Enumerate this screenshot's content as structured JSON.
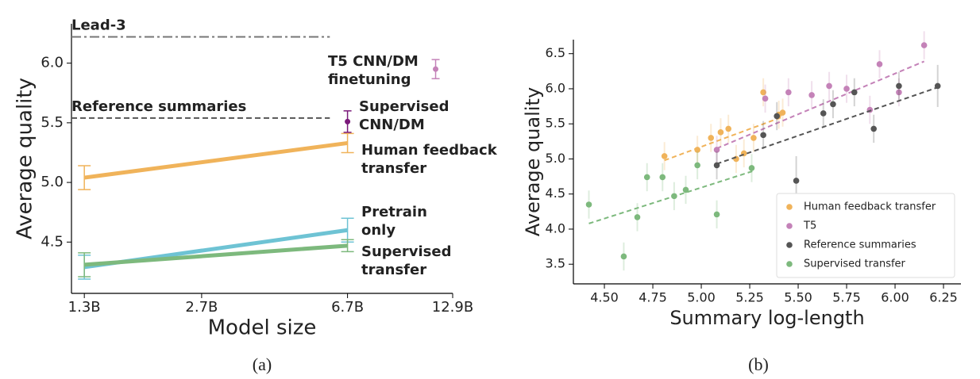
{
  "chart_data": [
    {
      "type": "line",
      "log_x": true,
      "caption": "(a)",
      "xlabel": "Model size",
      "ylabel": "Average quality",
      "xlim": [
        1.2,
        12.9
      ],
      "ylim": [
        4.07,
        6.33
      ],
      "xticks": [
        {
          "value": 1.3,
          "label": "1.3B"
        },
        {
          "value": 2.7,
          "label": "2.7B"
        },
        {
          "value": 6.7,
          "label": "6.7B"
        },
        {
          "value": 12.9,
          "label": "12.9B"
        }
      ],
      "yticks": [
        4.5,
        {
          "value": 5,
          "label": "5.0"
        },
        5.5,
        {
          "value": 6,
          "label": "6.0"
        }
      ],
      "hlines": [
        {
          "label": "Lead-3",
          "y": 6.22,
          "style": "dashdot",
          "color": "#8a8a8a",
          "x_range": [
            1.2,
            6.0
          ]
        },
        {
          "label": "Reference summaries",
          "y": 5.54,
          "style": "dashed",
          "color": "#8a8a8a",
          "x_range": [
            1.2,
            6.0
          ]
        }
      ],
      "series": [
        {
          "name": [
            "Human feedback",
            "transfer"
          ],
          "color": "#f0b35a",
          "marker": "line",
          "x": [
            1.3,
            6.7
          ],
          "values": [
            5.04,
            5.33
          ],
          "errors": [
            0.1,
            0.08
          ]
        },
        {
          "name": [
            "Pretrain",
            "only"
          ],
          "color": "#6ec3d4",
          "marker": "line",
          "x": [
            1.3,
            6.7
          ],
          "values": [
            4.29,
            4.6
          ],
          "errors": [
            0.1,
            0.1
          ]
        },
        {
          "name": [
            "Supervised",
            "transfer"
          ],
          "color": "#7db97d",
          "marker": "line",
          "x": [
            1.3,
            6.7
          ],
          "values": [
            4.31,
            4.47
          ],
          "errors": [
            0.1,
            0.05
          ]
        },
        {
          "name": [
            "Supervised",
            "CNN/DM"
          ],
          "color": "#7a1a7a",
          "marker": "point",
          "x": [
            6.7
          ],
          "values": [
            5.51
          ],
          "errors": [
            0.09
          ]
        },
        {
          "name": [
            "T5 CNN/DM",
            "finetuning"
          ],
          "color": "#c482b8",
          "marker": "point",
          "x": [
            11.6
          ],
          "values": [
            5.95
          ],
          "errors": [
            0.08
          ]
        }
      ]
    },
    {
      "type": "scatter",
      "caption": "(b)",
      "xlabel": "Summary log-length",
      "ylabel": "Average quality",
      "legend": "lower right",
      "xlim": [
        4.34,
        6.34
      ],
      "ylim": [
        3.22,
        6.7
      ],
      "xticks": [
        {
          "value": 4.5,
          "label": "4.50"
        },
        4.75,
        {
          "value": 5,
          "label": "5.00"
        },
        5.25,
        {
          "value": 5.5,
          "label": "5.50"
        },
        5.75,
        {
          "value": 6,
          "label": "6.00"
        },
        6.25
      ],
      "yticks": [
        3.5,
        {
          "value": 4,
          "label": "4.0"
        },
        4.5,
        {
          "value": 5,
          "label": "5.0"
        },
        5.5,
        {
          "value": 6,
          "label": "6.0"
        },
        6.5
      ],
      "series": [
        {
          "name": "Human feedback transfer",
          "color": "#f0b35a",
          "x": [
            4.81,
            4.98,
            5.05,
            5.1,
            5.14,
            5.18,
            5.22,
            5.27,
            5.32,
            5.4,
            5.42
          ],
          "values": [
            5.04,
            5.13,
            5.3,
            5.38,
            5.43,
            5.0,
            5.08,
            5.3,
            5.95,
            5.63,
            5.66
          ],
          "errors": [
            0.2,
            0.2,
            0.2,
            0.2,
            0.2,
            0.2,
            0.2,
            0.2,
            0.2,
            0.2,
            0.2
          ],
          "trend_x": [
            4.81,
            5.42
          ],
          "trend_y": [
            4.98,
            5.6
          ]
        },
        {
          "name": "T5",
          "color": "#c482b8",
          "x": [
            5.08,
            5.33,
            5.45,
            5.57,
            5.66,
            5.75,
            5.87,
            5.92,
            6.02,
            6.15
          ],
          "values": [
            5.13,
            5.86,
            5.95,
            5.91,
            6.04,
            6.0,
            5.7,
            6.35,
            5.95,
            6.62
          ],
          "errors": [
            0.2,
            0.2,
            0.2,
            0.2,
            0.2,
            0.2,
            0.2,
            0.2,
            0.2,
            0.2
          ],
          "trend_x": [
            5.08,
            6.15
          ],
          "trend_y": [
            5.15,
            6.39
          ]
        },
        {
          "name": "Reference summaries",
          "color": "#555555",
          "x": [
            5.08,
            5.32,
            5.39,
            5.49,
            5.63,
            5.68,
            5.79,
            5.89,
            6.02,
            6.22
          ],
          "values": [
            4.91,
            5.34,
            5.61,
            4.69,
            5.65,
            5.78,
            5.95,
            5.43,
            6.04,
            6.04
          ],
          "errors": [
            0.2,
            0.2,
            0.2,
            0.35,
            0.2,
            0.2,
            0.2,
            0.2,
            0.2,
            0.3
          ],
          "trend_x": [
            5.08,
            6.22
          ],
          "trend_y": [
            4.93,
            6.02
          ]
        },
        {
          "name": "Supervised transfer",
          "color": "#7db97d",
          "x": [
            4.42,
            4.6,
            4.67,
            4.72,
            4.8,
            4.86,
            4.92,
            4.98,
            5.08,
            5.26
          ],
          "values": [
            4.35,
            3.61,
            4.17,
            4.74,
            4.74,
            4.47,
            4.56,
            4.91,
            4.21,
            4.87
          ],
          "errors": [
            0.2,
            0.2,
            0.2,
            0.2,
            0.2,
            0.2,
            0.2,
            0.2,
            0.2,
            0.2
          ],
          "trend_x": [
            4.42,
            5.27
          ],
          "trend_y": [
            4.08,
            4.83
          ]
        }
      ]
    }
  ]
}
